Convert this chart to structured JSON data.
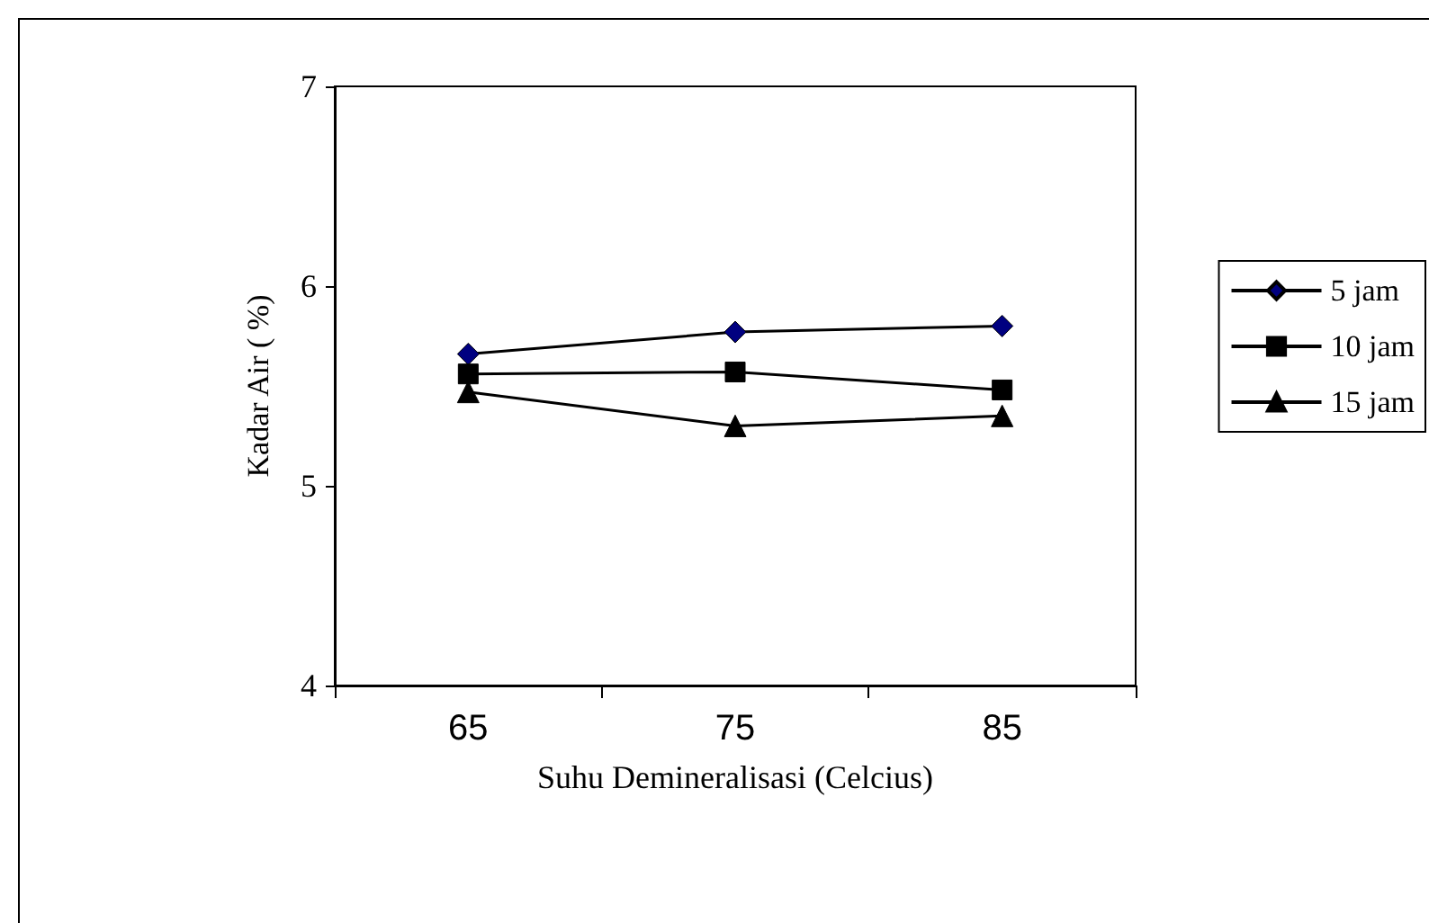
{
  "chart_data": {
    "type": "line",
    "xlabel": "Suhu Demineralisasi (Celcius)",
    "ylabel": "Kadar Air ( %)",
    "categories": [
      "65",
      "75",
      "85"
    ],
    "series": [
      {
        "name": "5 jam",
        "color": "#000080",
        "marker": "diamond",
        "values": [
          5.66,
          5.77,
          5.8
        ]
      },
      {
        "name": "10 jam",
        "color": "#000000",
        "marker": "square",
        "values": [
          5.56,
          5.57,
          5.48
        ]
      },
      {
        "name": "15 jam",
        "color": "#000000",
        "marker": "triangle",
        "values": [
          5.47,
          5.3,
          5.35
        ]
      }
    ],
    "ylim": [
      4,
      7
    ],
    "yticks": [
      4,
      5,
      6,
      7
    ],
    "grid": false,
    "legend": "right"
  }
}
